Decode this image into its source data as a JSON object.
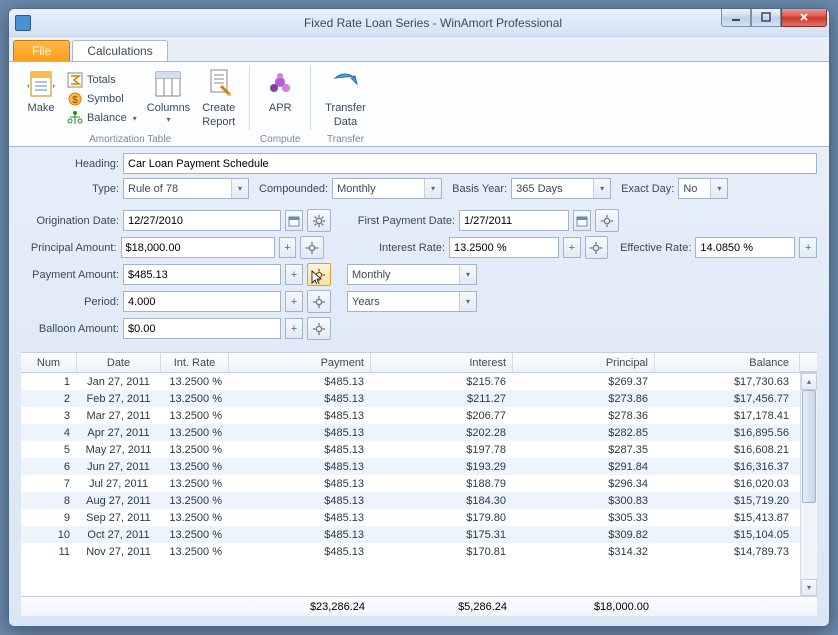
{
  "window": {
    "title": "Fixed Rate Loan Series - WinAmort Professional"
  },
  "ribbon": {
    "tabs": {
      "file": "File",
      "calculations": "Calculations"
    },
    "make": "Make",
    "totals": "Totals",
    "symbol": "Symbol",
    "balance": "Balance",
    "columns": "Columns",
    "create_report_1": "Create",
    "create_report_2": "Report",
    "apr": "APR",
    "transfer_1": "Transfer",
    "transfer_2": "Data",
    "group_amort": "Amortization Table",
    "group_compute": "Compute",
    "group_transfer": "Transfer"
  },
  "form": {
    "heading_label": "Heading:",
    "heading_value": "Car Loan Payment Schedule",
    "type_label": "Type:",
    "type_value": "Rule of 78",
    "compounded_label": "Compounded:",
    "compounded_value": "Monthly",
    "basis_label": "Basis Year:",
    "basis_value": "365 Days",
    "exact_label": "Exact Day:",
    "exact_value": "No",
    "orig_label": "Origination Date:",
    "orig_value": "12/27/2010",
    "firstpay_label": "First Payment Date:",
    "firstpay_value": "1/27/2011",
    "principal_label": "Principal Amount:",
    "principal_value": "$18,000.00",
    "intrate_label": "Interest Rate:",
    "intrate_value": "13.2500 %",
    "effrate_label": "Effective Rate:",
    "effrate_value": "14.0850 %",
    "payment_label": "Payment Amount:",
    "payment_value": "$485.13",
    "payfreq_value": "Monthly",
    "period_label": "Period:",
    "period_value": "4.000",
    "period_unit": "Years",
    "balloon_label": "Balloon Amount:",
    "balloon_value": "$0.00"
  },
  "grid": {
    "headers": {
      "num": "Num",
      "date": "Date",
      "rate": "Int. Rate",
      "payment": "Payment",
      "interest": "Interest",
      "principal": "Principal",
      "balance": "Balance"
    },
    "rows": [
      {
        "n": "1",
        "d": "Jan 27, 2011",
        "r": "13.2500 %",
        "p": "$485.13",
        "i": "$215.76",
        "pr": "$269.37",
        "b": "$17,730.63"
      },
      {
        "n": "2",
        "d": "Feb 27, 2011",
        "r": "13.2500 %",
        "p": "$485.13",
        "i": "$211.27",
        "pr": "$273.86",
        "b": "$17,456.77"
      },
      {
        "n": "3",
        "d": "Mar 27, 2011",
        "r": "13.2500 %",
        "p": "$485.13",
        "i": "$206.77",
        "pr": "$278.36",
        "b": "$17,178.41"
      },
      {
        "n": "4",
        "d": "Apr 27, 2011",
        "r": "13.2500 %",
        "p": "$485.13",
        "i": "$202.28",
        "pr": "$282.85",
        "b": "$16,895.56"
      },
      {
        "n": "5",
        "d": "May 27, 2011",
        "r": "13.2500 %",
        "p": "$485.13",
        "i": "$197.78",
        "pr": "$287.35",
        "b": "$16,608.21"
      },
      {
        "n": "6",
        "d": "Jun 27, 2011",
        "r": "13.2500 %",
        "p": "$485.13",
        "i": "$193.29",
        "pr": "$291.84",
        "b": "$16,316.37"
      },
      {
        "n": "7",
        "d": "Jul 27, 2011",
        "r": "13.2500 %",
        "p": "$485.13",
        "i": "$188.79",
        "pr": "$296.34",
        "b": "$16,020.03"
      },
      {
        "n": "8",
        "d": "Aug 27, 2011",
        "r": "13.2500 %",
        "p": "$485.13",
        "i": "$184.30",
        "pr": "$300.83",
        "b": "$15,719.20"
      },
      {
        "n": "9",
        "d": "Sep 27, 2011",
        "r": "13.2500 %",
        "p": "$485.13",
        "i": "$179.80",
        "pr": "$305.33",
        "b": "$15,413.87"
      },
      {
        "n": "10",
        "d": "Oct 27, 2011",
        "r": "13.2500 %",
        "p": "$485.13",
        "i": "$175.31",
        "pr": "$309.82",
        "b": "$15,104.05"
      },
      {
        "n": "11",
        "d": "Nov 27, 2011",
        "r": "13.2500 %",
        "p": "$485.13",
        "i": "$170.81",
        "pr": "$314.32",
        "b": "$14,789.73"
      }
    ],
    "totals": {
      "payment": "$23,286.24",
      "interest": "$5,286.24",
      "principal": "$18,000.00"
    }
  },
  "colors": {
    "accent_orange": "#ff9d1a",
    "row_alt": "#eef4fb",
    "border": "#a4b4c8"
  }
}
